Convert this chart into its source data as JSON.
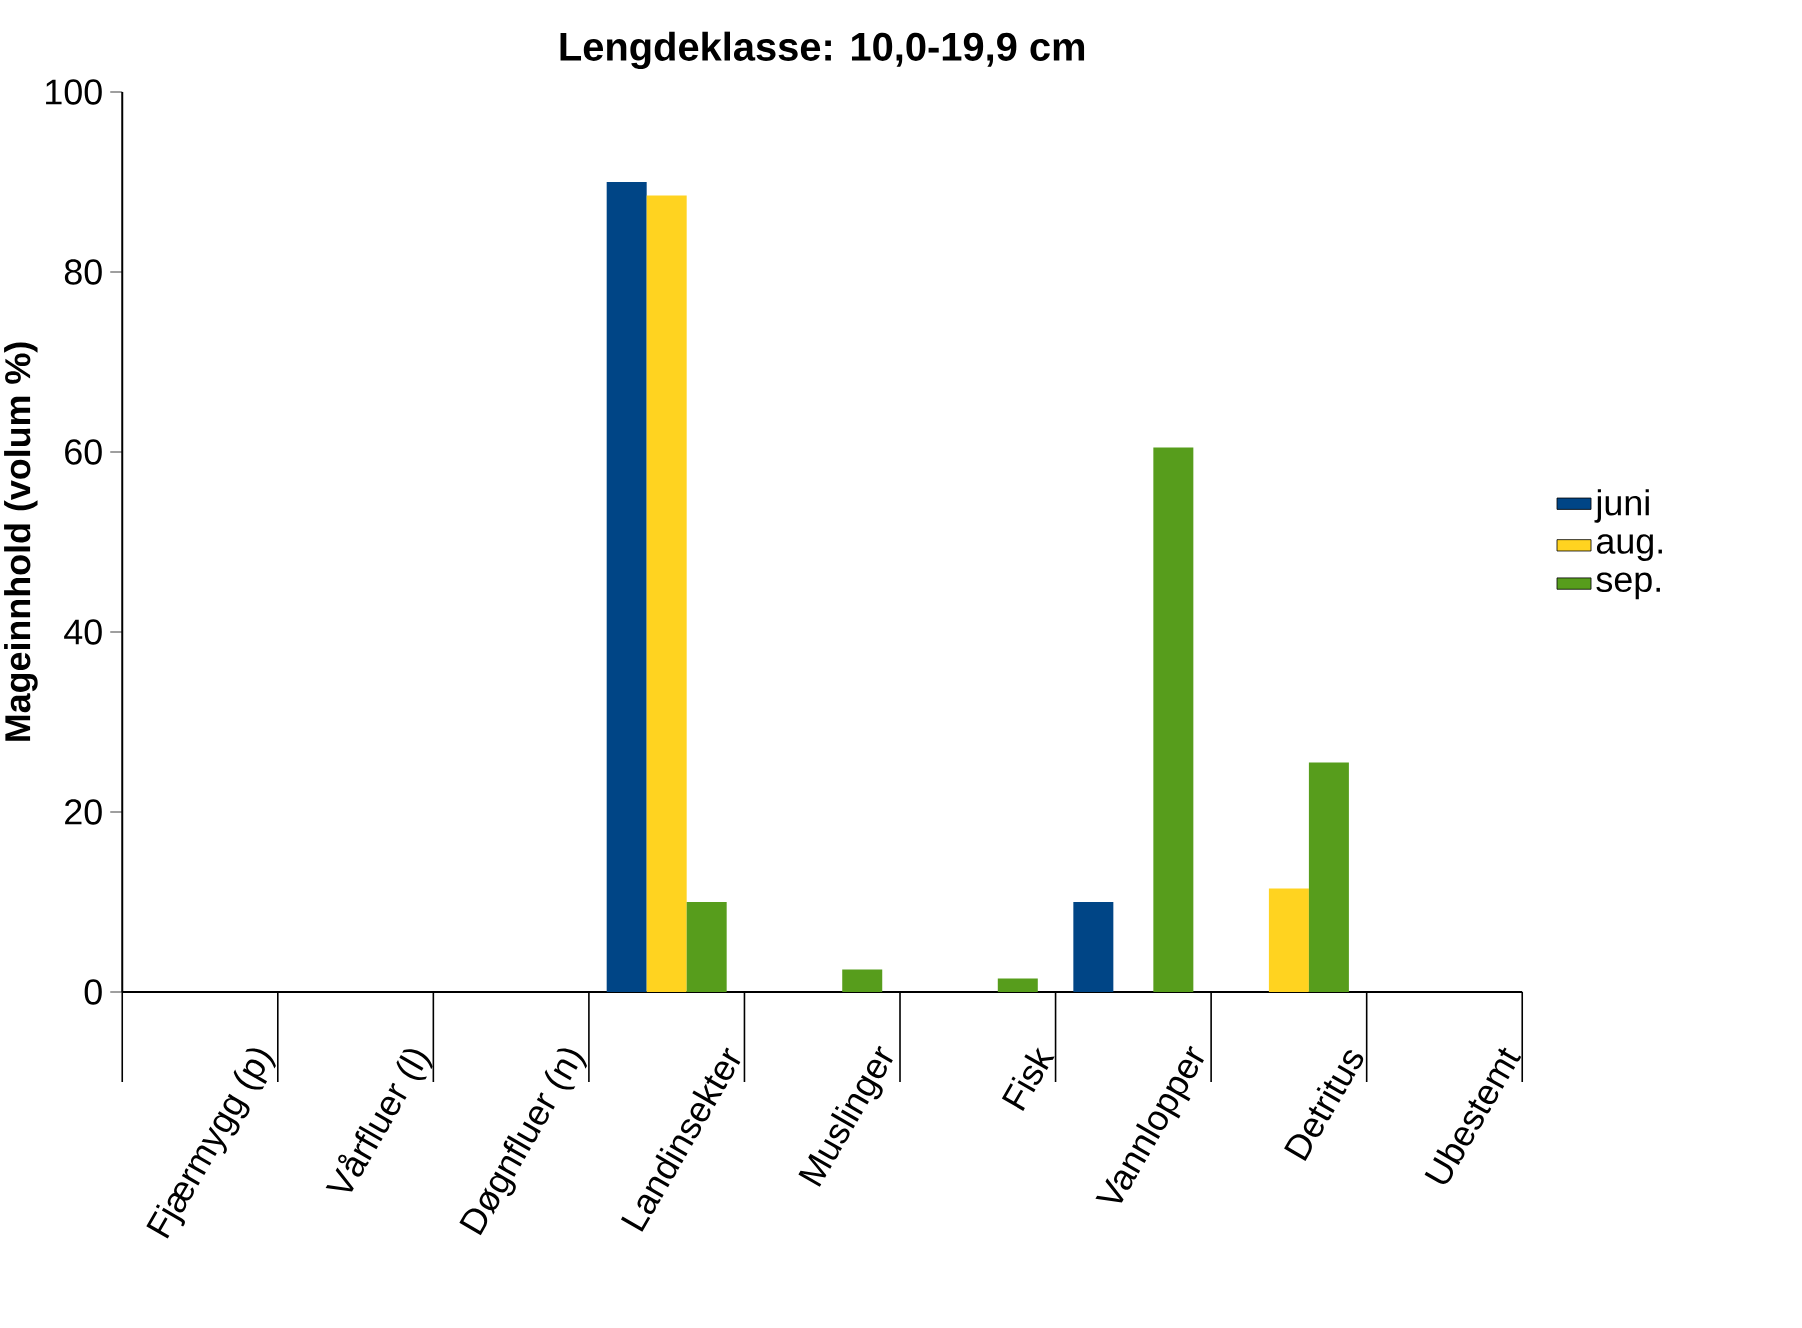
{
  "chart_data": {
    "type": "bar",
    "title": "Lengdeklasse: 10,0-19,9 cm",
    "ylabel": "Mageinnhold (volum %)",
    "categories": [
      "Fjærmygg (p)",
      "Vårfluer (l)",
      "Døgnfluer (n)",
      "Landinsekter",
      "Muslinger",
      "Fisk",
      "Vannlopper",
      "Detritus",
      "Ubestemt"
    ],
    "series": [
      {
        "name": "juni",
        "color": "#004586",
        "values": [
          0,
          0,
          0,
          90,
          0,
          0,
          10,
          0,
          0
        ]
      },
      {
        "name": "aug.",
        "color": "#ffd320",
        "values": [
          0,
          0,
          0,
          88.5,
          0,
          0,
          0,
          11.5,
          0
        ]
      },
      {
        "name": "sep.",
        "color": "#579d1c",
        "values": [
          0,
          0,
          0,
          10,
          2.5,
          1.5,
          60.5,
          25.5,
          0
        ]
      }
    ],
    "ylim": [
      0,
      100
    ],
    "yticks": [
      0,
      20,
      40,
      60,
      80,
      100
    ],
    "legend": "right"
  }
}
